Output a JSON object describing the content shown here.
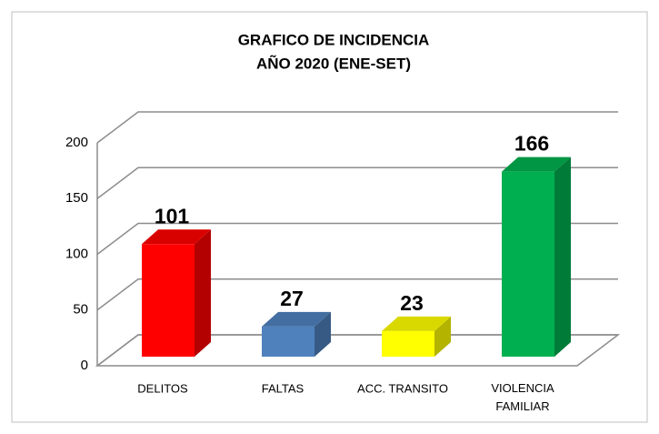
{
  "chart_data": {
    "type": "bar3d",
    "title": [
      "GRAFICO DE INCIDENCIA",
      "AÑO 2020 (ENE-SET)"
    ],
    "categories": [
      "DELITOS",
      "FALTAS",
      "ACC. TRANSITO",
      "VIOLENCIA FAMILIAR"
    ],
    "values": [
      101,
      27,
      23,
      166
    ],
    "colors": [
      "#ff0000",
      "#4f81bd",
      "#ffff00",
      "#00b050"
    ],
    "ylim": [
      0,
      200
    ],
    "yticks": [
      0,
      50,
      100,
      150,
      200
    ],
    "grid": true
  }
}
